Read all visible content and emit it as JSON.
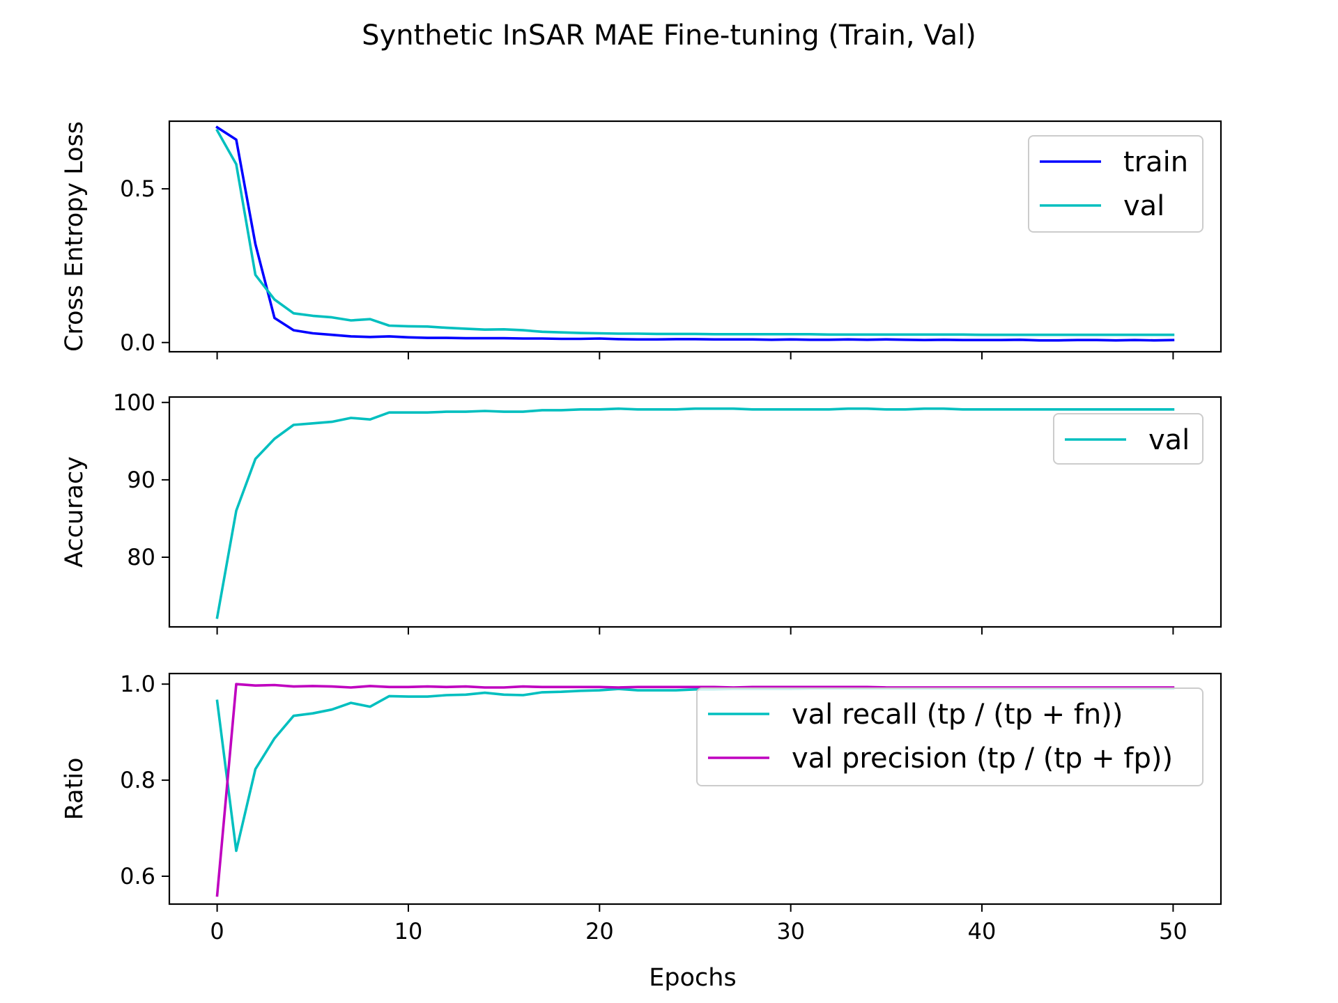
{
  "figure": {
    "suptitle": "Synthetic InSAR MAE Fine-tuning (Train, Val)",
    "xlabel": "Epochs",
    "xticks": [
      0,
      10,
      20,
      30,
      40,
      50
    ],
    "xlim": [
      -2.5,
      52.5
    ]
  },
  "colors": {
    "train": "#0000ff",
    "val": "#00bfbf",
    "precision": "#bf00bf"
  },
  "chart_data": [
    {
      "type": "line",
      "ylabel": "Cross Entropy Loss",
      "ylim": [
        -0.03,
        0.72
      ],
      "yticks": [
        0.0,
        0.5
      ],
      "legend_position": "top-right",
      "x": [
        0,
        1,
        2,
        3,
        4,
        5,
        6,
        7,
        8,
        9,
        10,
        11,
        12,
        13,
        14,
        15,
        16,
        17,
        18,
        19,
        20,
        21,
        22,
        23,
        24,
        25,
        26,
        27,
        28,
        29,
        30,
        31,
        32,
        33,
        34,
        35,
        36,
        37,
        38,
        39,
        40,
        41,
        42,
        43,
        44,
        45,
        46,
        47,
        48,
        49,
        50
      ],
      "series": [
        {
          "name": "train",
          "color": "#0000ff",
          "values": [
            0.7,
            0.66,
            0.32,
            0.08,
            0.04,
            0.03,
            0.025,
            0.02,
            0.018,
            0.02,
            0.017,
            0.015,
            0.015,
            0.014,
            0.014,
            0.014,
            0.013,
            0.013,
            0.012,
            0.012,
            0.013,
            0.011,
            0.01,
            0.01,
            0.011,
            0.011,
            0.01,
            0.01,
            0.01,
            0.009,
            0.01,
            0.009,
            0.009,
            0.01,
            0.009,
            0.01,
            0.009,
            0.008,
            0.009,
            0.008,
            0.008,
            0.008,
            0.009,
            0.007,
            0.007,
            0.008,
            0.008,
            0.007,
            0.008,
            0.007,
            0.008
          ]
        },
        {
          "name": "val",
          "color": "#00bfbf",
          "values": [
            0.69,
            0.58,
            0.22,
            0.14,
            0.095,
            0.087,
            0.082,
            0.072,
            0.076,
            0.055,
            0.053,
            0.052,
            0.048,
            0.045,
            0.042,
            0.043,
            0.04,
            0.035,
            0.033,
            0.031,
            0.03,
            0.029,
            0.029,
            0.028,
            0.028,
            0.028,
            0.027,
            0.027,
            0.027,
            0.027,
            0.027,
            0.027,
            0.026,
            0.026,
            0.026,
            0.026,
            0.026,
            0.026,
            0.026,
            0.026,
            0.025,
            0.025,
            0.025,
            0.025,
            0.025,
            0.025,
            0.025,
            0.025,
            0.025,
            0.025,
            0.025
          ]
        }
      ]
    },
    {
      "type": "line",
      "ylabel": "Accuracy",
      "ylim": [
        71.0,
        100.7
      ],
      "yticks": [
        80,
        90,
        100
      ],
      "legend_position": "top-right",
      "x": [
        0,
        1,
        2,
        3,
        4,
        5,
        6,
        7,
        8,
        9,
        10,
        11,
        12,
        13,
        14,
        15,
        16,
        17,
        18,
        19,
        20,
        21,
        22,
        23,
        24,
        25,
        26,
        27,
        28,
        29,
        30,
        31,
        32,
        33,
        34,
        35,
        36,
        37,
        38,
        39,
        40,
        41,
        42,
        43,
        44,
        45,
        46,
        47,
        48,
        49,
        50
      ],
      "series": [
        {
          "name": "val",
          "color": "#00bfbf",
          "values": [
            72.2,
            86.0,
            92.7,
            95.3,
            97.1,
            97.3,
            97.5,
            98.0,
            97.8,
            98.7,
            98.7,
            98.7,
            98.8,
            98.8,
            98.9,
            98.8,
            98.8,
            99.0,
            99.0,
            99.1,
            99.1,
            99.2,
            99.1,
            99.1,
            99.1,
            99.2,
            99.2,
            99.2,
            99.1,
            99.1,
            99.1,
            99.1,
            99.1,
            99.2,
            99.2,
            99.1,
            99.1,
            99.2,
            99.2,
            99.1,
            99.1,
            99.1,
            99.1,
            99.1,
            99.1,
            99.1,
            99.1,
            99.1,
            99.1,
            99.1,
            99.1
          ]
        }
      ]
    },
    {
      "type": "line",
      "ylabel": "Ratio",
      "ylim": [
        0.542,
        1.022
      ],
      "yticks": [
        0.6,
        0.8,
        1.0
      ],
      "legend_position": "top-right",
      "x": [
        0,
        1,
        2,
        3,
        4,
        5,
        6,
        7,
        8,
        9,
        10,
        11,
        12,
        13,
        14,
        15,
        16,
        17,
        18,
        19,
        20,
        21,
        22,
        23,
        24,
        25,
        26,
        27,
        28,
        29,
        30,
        31,
        32,
        33,
        34,
        35,
        36,
        37,
        38,
        39,
        40,
        41,
        42,
        43,
        44,
        45,
        46,
        47,
        48,
        49,
        50
      ],
      "series": [
        {
          "name": "val recall (tp / (tp + fn))",
          "color": "#00bfbf",
          "values": [
            0.965,
            0.653,
            0.823,
            0.887,
            0.934,
            0.939,
            0.947,
            0.961,
            0.953,
            0.975,
            0.974,
            0.974,
            0.977,
            0.978,
            0.982,
            0.978,
            0.977,
            0.983,
            0.984,
            0.986,
            0.987,
            0.99,
            0.987,
            0.987,
            0.987,
            0.989,
            0.989,
            0.99,
            0.99,
            0.99,
            0.99,
            0.991,
            0.991,
            0.991,
            0.991,
            0.991,
            0.991,
            0.991,
            0.991,
            0.991,
            0.991,
            0.991,
            0.991,
            0.991,
            0.991,
            0.991,
            0.991,
            0.991,
            0.991,
            0.991,
            0.991
          ]
        },
        {
          "name": "val precision (tp / (tp + fp))",
          "color": "#bf00bf",
          "values": [
            0.56,
            1.0,
            0.997,
            0.998,
            0.995,
            0.996,
            0.995,
            0.993,
            0.996,
            0.994,
            0.994,
            0.995,
            0.994,
            0.995,
            0.993,
            0.993,
            0.995,
            0.994,
            0.994,
            0.994,
            0.994,
            0.993,
            0.994,
            0.994,
            0.994,
            0.994,
            0.994,
            0.993,
            0.994,
            0.994,
            0.994,
            0.994,
            0.994,
            0.994,
            0.994,
            0.993,
            0.993,
            0.993,
            0.993,
            0.993,
            0.993,
            0.993,
            0.993,
            0.993,
            0.993,
            0.993,
            0.993,
            0.993,
            0.993,
            0.993,
            0.993
          ]
        }
      ]
    }
  ]
}
